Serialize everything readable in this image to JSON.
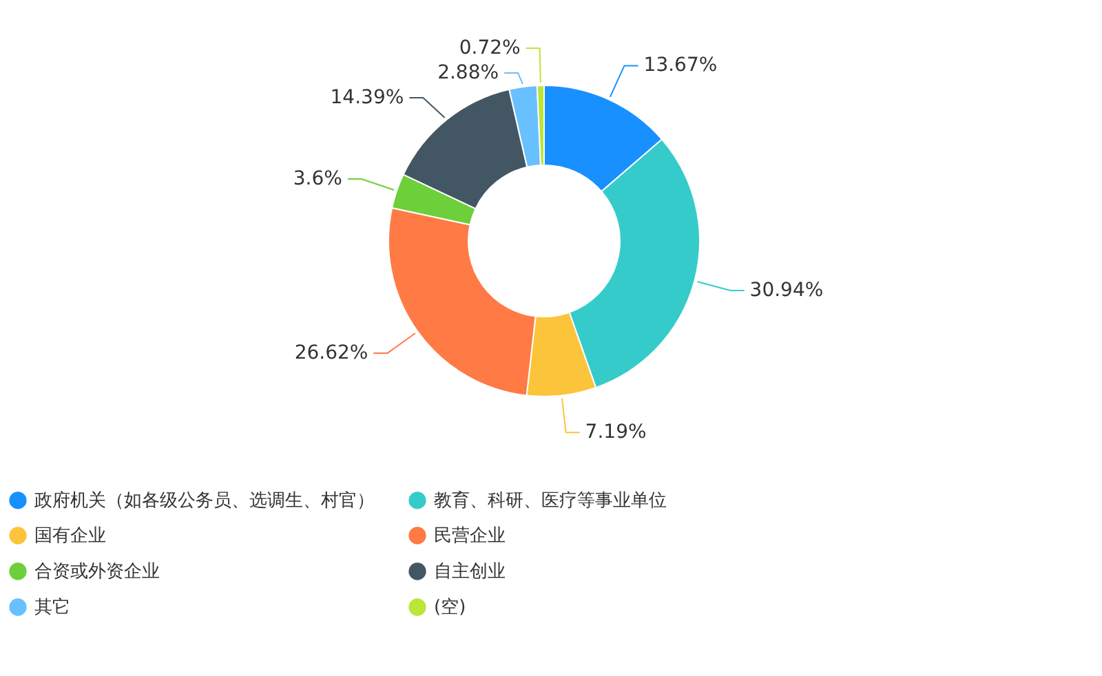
{
  "chart_data": {
    "type": "donut",
    "categories": [
      "政府机关（如各级公务员、选调生、村官）",
      "教育、科研、医疗等事业单位",
      "国有企业",
      "民营企业",
      "合资或外资企业",
      "自主创业",
      "其它",
      "(空)"
    ],
    "values": [
      13.67,
      30.94,
      7.19,
      26.62,
      3.6,
      14.39,
      2.88,
      0.72
    ],
    "colors": [
      "#1890ff",
      "#36cbcb",
      "#fbc43a",
      "#ff7a45",
      "#6dcf3a",
      "#435663",
      "#69c0ff",
      "#bae637"
    ],
    "value_labels": [
      "13.67%",
      "30.94%",
      "7.19%",
      "26.62%",
      "3.6%",
      "14.39%",
      "2.88%",
      "0.72%"
    ],
    "legend": "bottom"
  }
}
